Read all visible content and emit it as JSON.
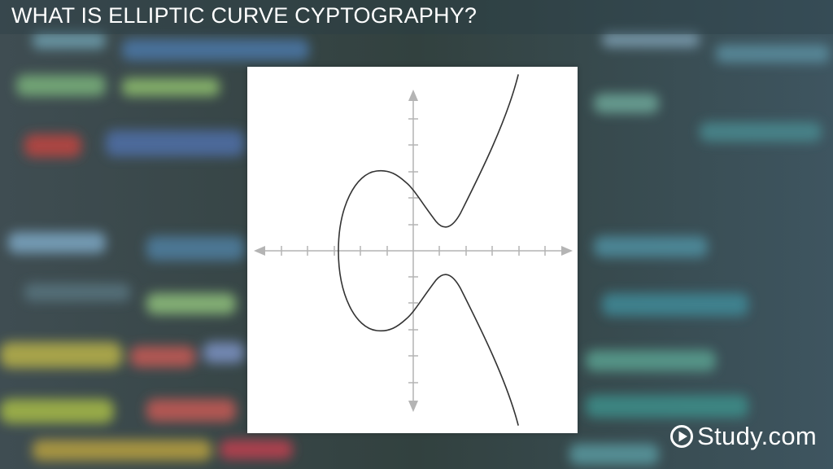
{
  "slide": {
    "title": "WHAT IS ELLIPTIC CURVE CYPTOGRAPHY?"
  },
  "brand": {
    "name": "Study.com",
    "icon": "play-circle-icon"
  },
  "colors": {
    "background": "#2a3438",
    "title_text": "#ffffff",
    "panel": "#ffffff",
    "axis": "#b4b4b4",
    "curve": "#333333"
  },
  "diagram": {
    "type": "elliptic-curve",
    "axes": "cross with arrowheads",
    "tick_count_per_half_axis": 6
  }
}
